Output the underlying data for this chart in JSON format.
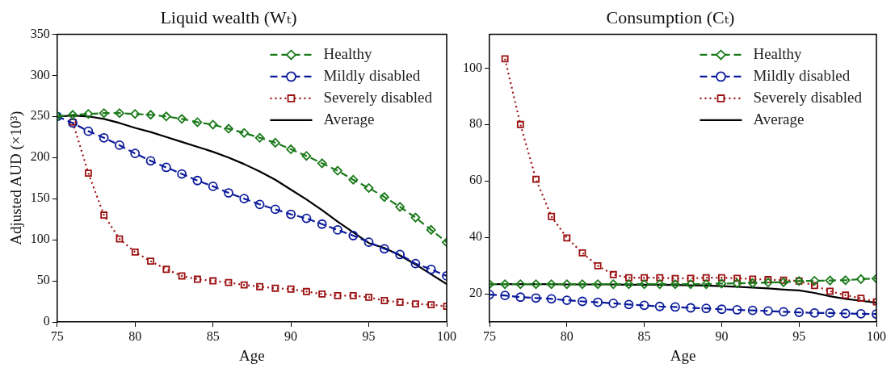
{
  "chart_data": [
    {
      "type": "line",
      "title": "Liquid wealth (Wₜ)",
      "xlabel": "Age",
      "ylabel": "Adjusted AUD (×10³)",
      "x": [
        75,
        76,
        77,
        78,
        79,
        80,
        81,
        82,
        83,
        84,
        85,
        86,
        87,
        88,
        89,
        90,
        91,
        92,
        93,
        94,
        95,
        96,
        97,
        98,
        99,
        100
      ],
      "xlim": [
        75,
        100
      ],
      "xticks": [
        75,
        80,
        85,
        90,
        95,
        100
      ],
      "ylim": [
        0,
        350
      ],
      "yticks": [
        0,
        50,
        100,
        150,
        200,
        250,
        300,
        350
      ],
      "grid": false,
      "legend": "top right",
      "series": [
        {
          "name": "Healthy",
          "color": "#1a7a1a",
          "marker": "diamond",
          "line_style": "dashed",
          "values": [
            250,
            252,
            253,
            254,
            254,
            253,
            252,
            250,
            247,
            243,
            240,
            235,
            230,
            224,
            218,
            210,
            202,
            193,
            184,
            173,
            163,
            152,
            140,
            127,
            112,
            97
          ]
        },
        {
          "name": "Mildly disabled",
          "color": "#0a1a9a",
          "marker": "circle",
          "line_style": "dashed",
          "values": [
            250,
            242,
            232,
            224,
            215,
            205,
            196,
            188,
            180,
            172,
            165,
            157,
            150,
            143,
            137,
            131,
            126,
            119,
            112,
            105,
            97,
            89,
            82,
            71,
            64,
            56
          ]
        },
        {
          "name": "Severely disabled",
          "color": "#9b1010",
          "marker": "square",
          "line_style": "dotted",
          "values": [
            null,
            243,
            181,
            130,
            101,
            85,
            74,
            64,
            56,
            52,
            50,
            48,
            45,
            43,
            41,
            40,
            37,
            34,
            32,
            32,
            30,
            26,
            24,
            22,
            21,
            19
          ]
        },
        {
          "name": "Average",
          "color": "#000000",
          "marker": "none",
          "line_style": "solid",
          "values": [
            250,
            251,
            250,
            247,
            242,
            236,
            231,
            225,
            219,
            213,
            207,
            200,
            192,
            183,
            173,
            161,
            149,
            136,
            122,
            109,
            96,
            90,
            81,
            70,
            58,
            46
          ]
        }
      ]
    },
    {
      "type": "line",
      "title": "Consumption (Cₜ)",
      "xlabel": "Age",
      "x": [
        75,
        76,
        77,
        78,
        79,
        80,
        81,
        82,
        83,
        84,
        85,
        86,
        87,
        88,
        89,
        90,
        91,
        92,
        93,
        94,
        95,
        96,
        97,
        98,
        99,
        100
      ],
      "xlim": [
        75,
        100
      ],
      "xticks": [
        75,
        80,
        85,
        90,
        95,
        100
      ],
      "ylim": [
        10,
        112
      ],
      "yticks": [
        20,
        40,
        60,
        80,
        100
      ],
      "grid": false,
      "legend": "top right",
      "series": [
        {
          "name": "Healthy",
          "color": "#1a7a1a",
          "marker": "diamond",
          "line_style": "dashed",
          "values": [
            23.4,
            23.4,
            23.4,
            23.4,
            23.4,
            23.4,
            23.4,
            23.4,
            23.4,
            23.4,
            23.4,
            23.4,
            23.4,
            23.4,
            23.4,
            23.6,
            23.7,
            23.8,
            24.0,
            24.1,
            24.5,
            24.6,
            24.7,
            24.8,
            25.2,
            25.4
          ]
        },
        {
          "name": "Mildly disabled",
          "color": "#0a1a9a",
          "marker": "circle",
          "line_style": "dashed",
          "values": [
            19.7,
            19.4,
            18.8,
            18.5,
            18.2,
            17.7,
            17.3,
            17.0,
            16.6,
            16.2,
            15.9,
            15.5,
            15.3,
            15.0,
            14.8,
            14.5,
            14.3,
            14.1,
            13.9,
            13.6,
            13.4,
            13.2,
            13.2,
            13.0,
            12.9,
            12.8
          ]
        },
        {
          "name": "Severely disabled",
          "color": "#9b1010",
          "marker": "square",
          "line_style": "dotted",
          "values": [
            null,
            103.3,
            80,
            60.6,
            47.4,
            39.8,
            34.5,
            29.9,
            26.8,
            25.7,
            25.7,
            25.7,
            25.4,
            25.5,
            25.7,
            25.7,
            25.5,
            25.2,
            25,
            24.8,
            24.5,
            22.9,
            20.9,
            19.5,
            18.4,
            17.1
          ]
        },
        {
          "name": "Average",
          "color": "#000000",
          "marker": "none",
          "line_style": "solid",
          "values": [
            23.4,
            23.4,
            23.4,
            23.4,
            23.4,
            23.3,
            23.3,
            23.3,
            23.3,
            23.2,
            23.2,
            23.2,
            23.1,
            23.0,
            22.9,
            22.7,
            22.5,
            22.2,
            21.9,
            21.5,
            21.2,
            20.3,
            19.1,
            18.2,
            17.5,
            16.8
          ]
        }
      ]
    }
  ]
}
